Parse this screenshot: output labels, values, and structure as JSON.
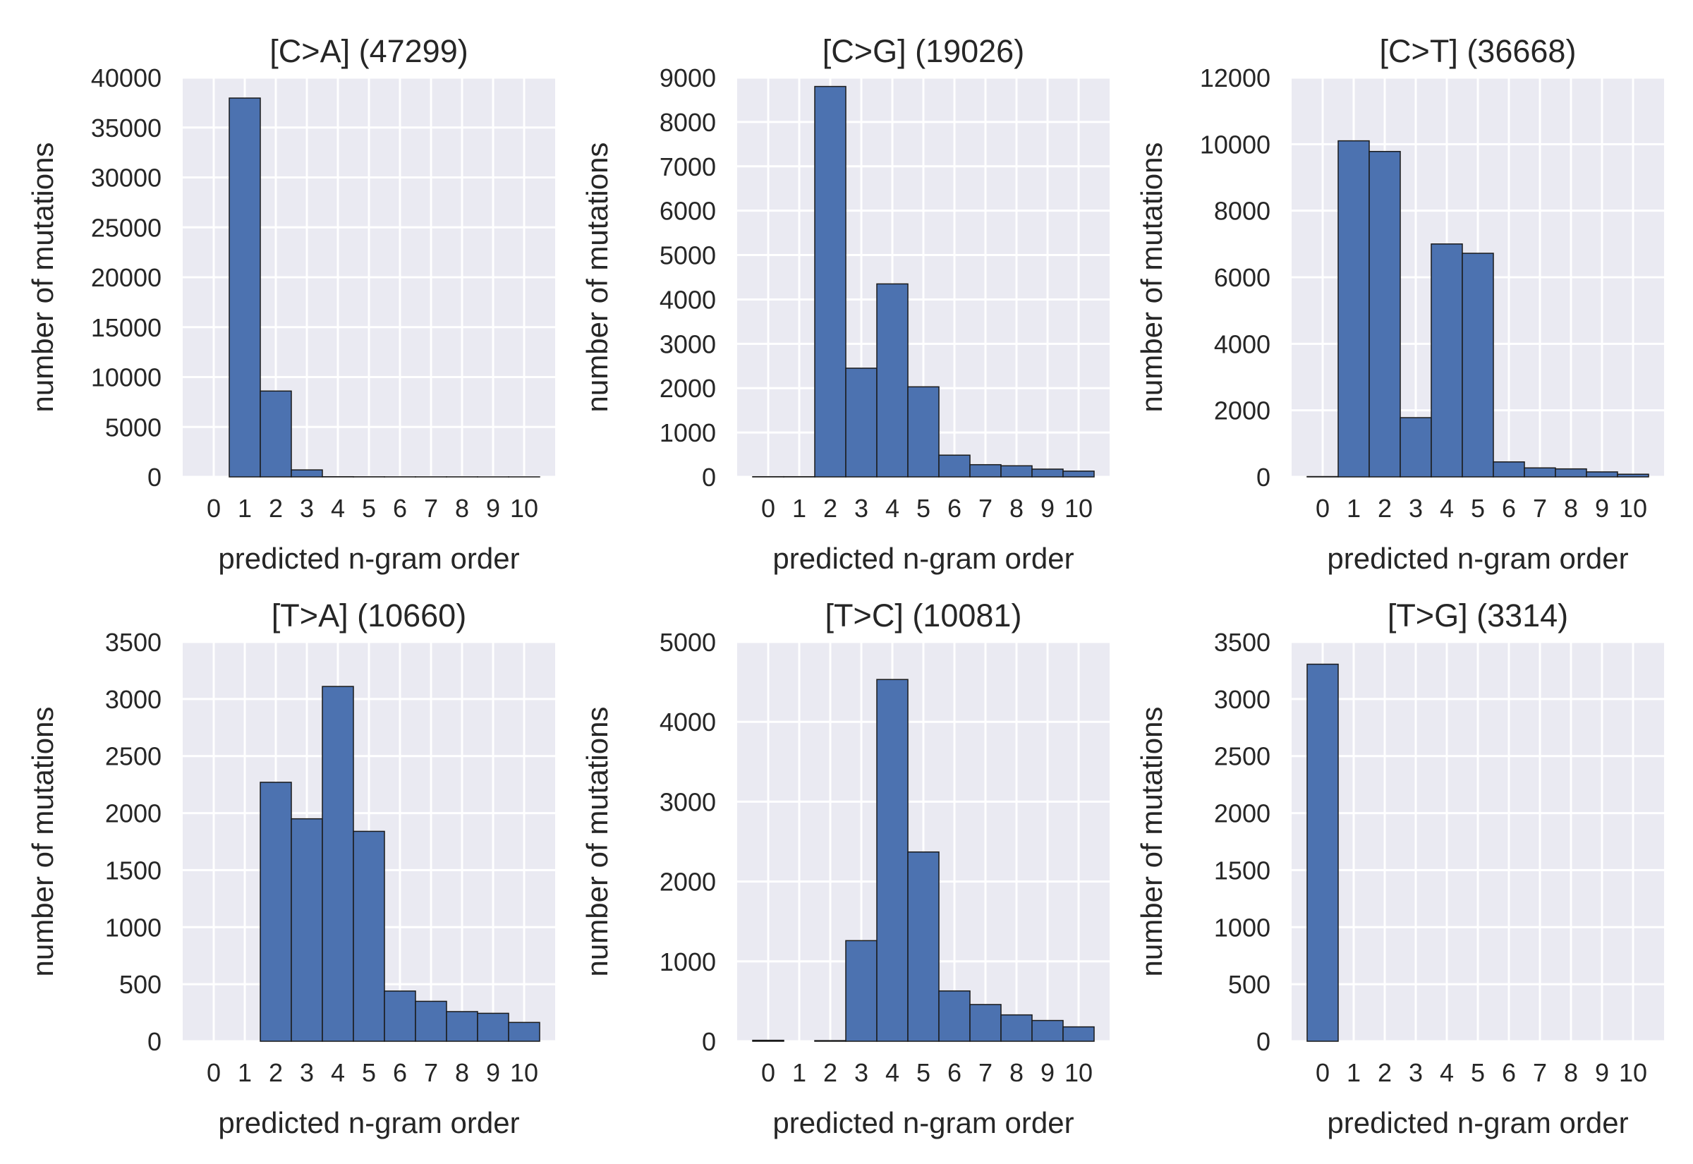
{
  "chart_data": [
    {
      "type": "bar",
      "title": "[C>A] (47299)",
      "xlabel": "predicted n-gram order",
      "ylabel": "number of mutations",
      "categories": [
        "0",
        "1",
        "2",
        "3",
        "4",
        "5",
        "6",
        "7",
        "8",
        "9",
        "10"
      ],
      "values": [
        0,
        37950,
        8600,
        700,
        20,
        10,
        5,
        5,
        5,
        2,
        2
      ],
      "ylim": [
        0,
        40000
      ],
      "yticks": [
        "0",
        "5000",
        "10000",
        "15000",
        "20000",
        "25000",
        "30000",
        "35000",
        "40000"
      ],
      "grid": true,
      "bar_color": "#4c72b0",
      "background": "#eaeaf2"
    },
    {
      "type": "bar",
      "title": "[C>G] (19026)",
      "xlabel": "predicted n-gram order",
      "ylabel": "number of mutations",
      "categories": [
        "0",
        "1",
        "2",
        "3",
        "4",
        "5",
        "6",
        "7",
        "8",
        "9",
        "10"
      ],
      "values": [
        5,
        5,
        8800,
        2450,
        4350,
        2030,
        490,
        275,
        250,
        175,
        130
      ],
      "ylim": [
        0,
        9000
      ],
      "yticks": [
        "0",
        "1000",
        "2000",
        "3000",
        "4000",
        "5000",
        "6000",
        "7000",
        "8000",
        "9000"
      ],
      "grid": true,
      "bar_color": "#4c72b0",
      "background": "#eaeaf2"
    },
    {
      "type": "bar",
      "title": "[C>T] (36668)",
      "xlabel": "predicted n-gram order",
      "ylabel": "number of mutations",
      "categories": [
        "0",
        "1",
        "2",
        "3",
        "4",
        "5",
        "6",
        "7",
        "8",
        "9",
        "10"
      ],
      "values": [
        10,
        10100,
        9780,
        1780,
        7000,
        6720,
        450,
        270,
        240,
        150,
        80
      ],
      "ylim": [
        0,
        12000
      ],
      "yticks": [
        "0",
        "2000",
        "4000",
        "6000",
        "8000",
        "10000",
        "12000"
      ],
      "grid": true,
      "bar_color": "#4c72b0",
      "background": "#eaeaf2"
    },
    {
      "type": "bar",
      "title": "[T>A] (10660)",
      "xlabel": "predicted n-gram order",
      "ylabel": "number of mutations",
      "categories": [
        "0",
        "1",
        "2",
        "3",
        "4",
        "5",
        "6",
        "7",
        "8",
        "9",
        "10"
      ],
      "values": [
        0,
        0,
        2270,
        1950,
        3110,
        1840,
        440,
        350,
        260,
        245,
        165
      ],
      "ylim": [
        0,
        3500
      ],
      "yticks": [
        "0",
        "500",
        "1000",
        "1500",
        "2000",
        "2500",
        "3000",
        "3500"
      ],
      "grid": true,
      "bar_color": "#4c72b0",
      "background": "#eaeaf2"
    },
    {
      "type": "bar",
      "title": "[T>C] (10081)",
      "xlabel": "predicted n-gram order",
      "ylabel": "number of mutations",
      "categories": [
        "0",
        "1",
        "2",
        "3",
        "4",
        "5",
        "6",
        "7",
        "8",
        "9",
        "10"
      ],
      "values": [
        12,
        0,
        8,
        1260,
        4530,
        2370,
        630,
        460,
        330,
        260,
        180
      ],
      "ylim": [
        0,
        5000
      ],
      "yticks": [
        "0",
        "1000",
        "2000",
        "3000",
        "4000",
        "5000"
      ],
      "grid": true,
      "bar_color": "#4c72b0",
      "background": "#eaeaf2"
    },
    {
      "type": "bar",
      "title": "[T>G] (3314)",
      "xlabel": "predicted n-gram order",
      "ylabel": "number of mutations",
      "categories": [
        "0",
        "1",
        "2",
        "3",
        "4",
        "5",
        "6",
        "7",
        "8",
        "9",
        "10"
      ],
      "values": [
        3305,
        0,
        0,
        0,
        0,
        0,
        0,
        0,
        0,
        0,
        0
      ],
      "ylim": [
        0,
        3500
      ],
      "yticks": [
        "0",
        "500",
        "1000",
        "1500",
        "2000",
        "2500",
        "3000",
        "3500"
      ],
      "grid": true,
      "bar_color": "#4c72b0",
      "background": "#eaeaf2"
    }
  ]
}
